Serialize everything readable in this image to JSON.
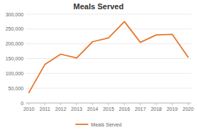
{
  "chart_data": {
    "type": "line",
    "title": "Meals Served",
    "x": [
      2010,
      2011,
      2012,
      2013,
      2014,
      2015,
      2016,
      2017,
      2018,
      2019,
      2020
    ],
    "xlim": [
      2009.8,
      2020.2
    ],
    "xticks": [
      2010,
      2011,
      2012,
      2013,
      2014,
      2015,
      2016,
      2017,
      2018,
      2019,
      2020
    ],
    "ylim": [
      0,
      300000
    ],
    "yticks": [
      0,
      {
        "value": 50000,
        "label": "50,000"
      },
      {
        "value": 100000,
        "label": "100,000"
      },
      {
        "value": 150000,
        "label": "150,000"
      },
      {
        "value": 200000,
        "label": "200,000"
      },
      {
        "value": 250000,
        "label": "250,000"
      },
      {
        "value": 300000,
        "label": "300,000"
      }
    ],
    "series": [
      {
        "name": "Meals Served",
        "color": "#E8762C",
        "values": [
          35000,
          130000,
          165000,
          152000,
          207000,
          220000,
          275000,
          205000,
          230000,
          232000,
          155000
        ]
      }
    ],
    "grid": true,
    "legend": "bottom"
  }
}
